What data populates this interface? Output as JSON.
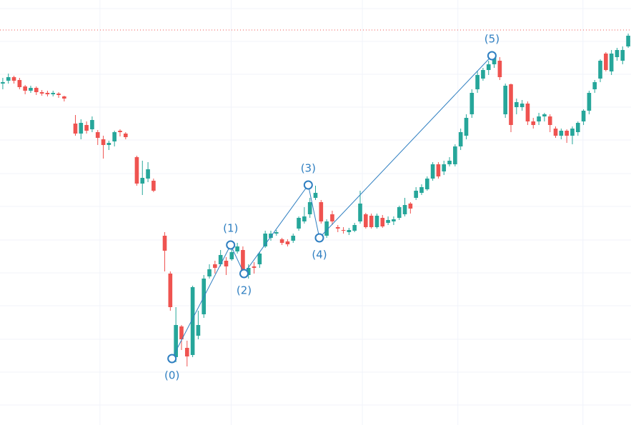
{
  "chart_data": {
    "type": "candlestick",
    "xlim": [
      -0.5,
      112.5
    ],
    "ylim": [
      0,
      595
    ],
    "x": [
      0,
      1,
      2,
      3,
      4,
      5,
      6,
      7,
      8,
      9,
      10,
      11,
      13,
      14,
      15,
      16,
      17,
      18,
      19,
      20,
      21,
      22,
      24,
      25,
      26,
      27,
      29,
      30,
      31,
      32,
      33,
      34,
      35,
      36,
      37,
      38,
      39,
      40,
      41,
      42,
      43,
      44,
      45,
      46,
      47,
      48,
      49,
      50,
      51,
      52,
      53,
      54,
      55,
      56,
      57,
      58,
      59,
      60,
      61,
      62,
      63,
      64,
      65,
      66,
      67,
      68,
      69,
      70,
      71,
      72,
      73,
      74,
      75,
      76,
      77,
      78,
      79,
      80,
      81,
      82,
      83,
      84,
      85,
      86,
      87,
      88,
      89,
      90,
      91,
      92,
      93,
      94,
      95,
      96,
      97,
      98,
      99,
      100,
      101,
      102,
      103,
      104,
      105,
      106,
      107,
      108,
      109,
      110,
      111,
      112
    ],
    "open": [
      478,
      482,
      487,
      483,
      474,
      468,
      472,
      466,
      465,
      463,
      464,
      460,
      422,
      408,
      420,
      414,
      410,
      400,
      392,
      397,
      412,
      408,
      375,
      338,
      345,
      342,
      265,
      212,
      95,
      138,
      108,
      98,
      125,
      155,
      208,
      225,
      225,
      230,
      232,
      243,
      245,
      210,
      222,
      225,
      250,
      262,
      268,
      260,
      257,
      258,
      275,
      285,
      295,
      318,
      312,
      265,
      295,
      277,
      273,
      270,
      272,
      285,
      295,
      293,
      277,
      290,
      283,
      285,
      290,
      295,
      310,
      318,
      325,
      330,
      345,
      365,
      355,
      365,
      365,
      390,
      405,
      435,
      470,
      485,
      497,
      505,
      510,
      435,
      477,
      445,
      445,
      450,
      425,
      425,
      432,
      432,
      415,
      405,
      412,
      405,
      410,
      425,
      440,
      470,
      485,
      520,
      495,
      515,
      510,
      530
    ],
    "high": [
      486,
      492,
      489,
      486,
      476,
      475,
      474,
      469,
      468,
      468,
      466,
      461,
      434,
      428,
      425,
      432,
      413,
      405,
      398,
      412,
      414,
      410,
      377,
      370,
      368,
      345,
      270,
      215,
      165,
      140,
      118,
      195,
      160,
      210,
      225,
      230,
      245,
      235,
      250,
      255,
      250,
      225,
      228,
      242,
      272,
      272,
      273,
      262,
      260,
      268,
      292,
      305,
      318,
      335,
      315,
      288,
      300,
      280,
      277,
      276,
      283,
      328,
      297,
      296,
      296,
      294,
      292,
      292,
      307,
      318,
      312,
      333,
      337,
      348,
      368,
      368,
      370,
      375,
      393,
      415,
      435,
      470,
      495,
      500,
      510,
      522,
      515,
      478,
      478,
      457,
      455,
      453,
      430,
      437,
      437,
      435,
      418,
      415,
      414,
      418,
      425,
      442,
      468,
      483,
      512,
      522,
      525,
      528,
      530,
      548
    ],
    "low": [
      470,
      478,
      478,
      470,
      463,
      465,
      462,
      461,
      460,
      460,
      458,
      453,
      405,
      400,
      408,
      410,
      392,
      373,
      385,
      390,
      404,
      400,
      335,
      322,
      340,
      326,
      215,
      160,
      88,
      105,
      82,
      95,
      120,
      150,
      205,
      212,
      222,
      210,
      230,
      240,
      212,
      205,
      212,
      220,
      248,
      258,
      265,
      252,
      250,
      255,
      272,
      282,
      290,
      315,
      282,
      262,
      280,
      270,
      268,
      266,
      270,
      282,
      275,
      275,
      275,
      276,
      280,
      280,
      287,
      292,
      296,
      315,
      322,
      328,
      342,
      345,
      350,
      362,
      362,
      385,
      400,
      430,
      465,
      482,
      490,
      500,
      483,
      430,
      410,
      435,
      440,
      420,
      415,
      420,
      425,
      410,
      402,
      400,
      395,
      393,
      405,
      420,
      435,
      465,
      480,
      495,
      490,
      510,
      505,
      528
    ],
    "close": [
      480,
      487,
      482,
      473,
      468,
      472,
      466,
      464,
      463,
      465,
      462,
      457,
      408,
      423,
      412,
      427,
      402,
      392,
      395,
      410,
      410,
      403,
      338,
      346,
      358,
      328,
      244,
      165,
      140,
      120,
      96,
      193,
      140,
      205,
      218,
      220,
      238,
      222,
      242,
      250,
      215,
      220,
      220,
      240,
      268,
      268,
      270,
      255,
      253,
      265,
      290,
      292,
      312,
      325,
      285,
      285,
      285,
      275,
      272,
      273,
      280,
      310,
      277,
      277,
      293,
      278,
      287,
      288,
      305,
      308,
      303,
      328,
      333,
      345,
      365,
      348,
      365,
      370,
      390,
      410,
      430,
      465,
      490,
      497,
      505,
      518,
      487,
      475,
      420,
      452,
      450,
      425,
      420,
      432,
      435,
      420,
      405,
      412,
      405,
      415,
      423,
      440,
      465,
      480,
      510,
      497,
      520,
      525,
      525,
      545
    ],
    "up_color": "#26a69a",
    "down_color": "#ef5350",
    "grid": true,
    "grid_color": "#f0f3fa",
    "xgrid": [
      17.4,
      40.9,
      64.4,
      81.5,
      103.9
    ],
    "ygrid": [
      583,
      537,
      491,
      445,
      399,
      352,
      306,
      259,
      213,
      167,
      120,
      74,
      28
    ],
    "reference_line": {
      "value": 553,
      "color": "#ef5350"
    },
    "wave": {
      "color": "#2f7fc1",
      "labels": [
        "(0)",
        "(1)",
        "(2)",
        "(3)",
        "(4)",
        "(5)"
      ],
      "x": [
        30.3,
        40.8,
        43.2,
        54.7,
        56.7,
        87.6
      ],
      "values": [
        93,
        252,
        212,
        336,
        262,
        517
      ],
      "label_positions": [
        "below",
        "above",
        "below",
        "above",
        "below",
        "above"
      ]
    }
  }
}
